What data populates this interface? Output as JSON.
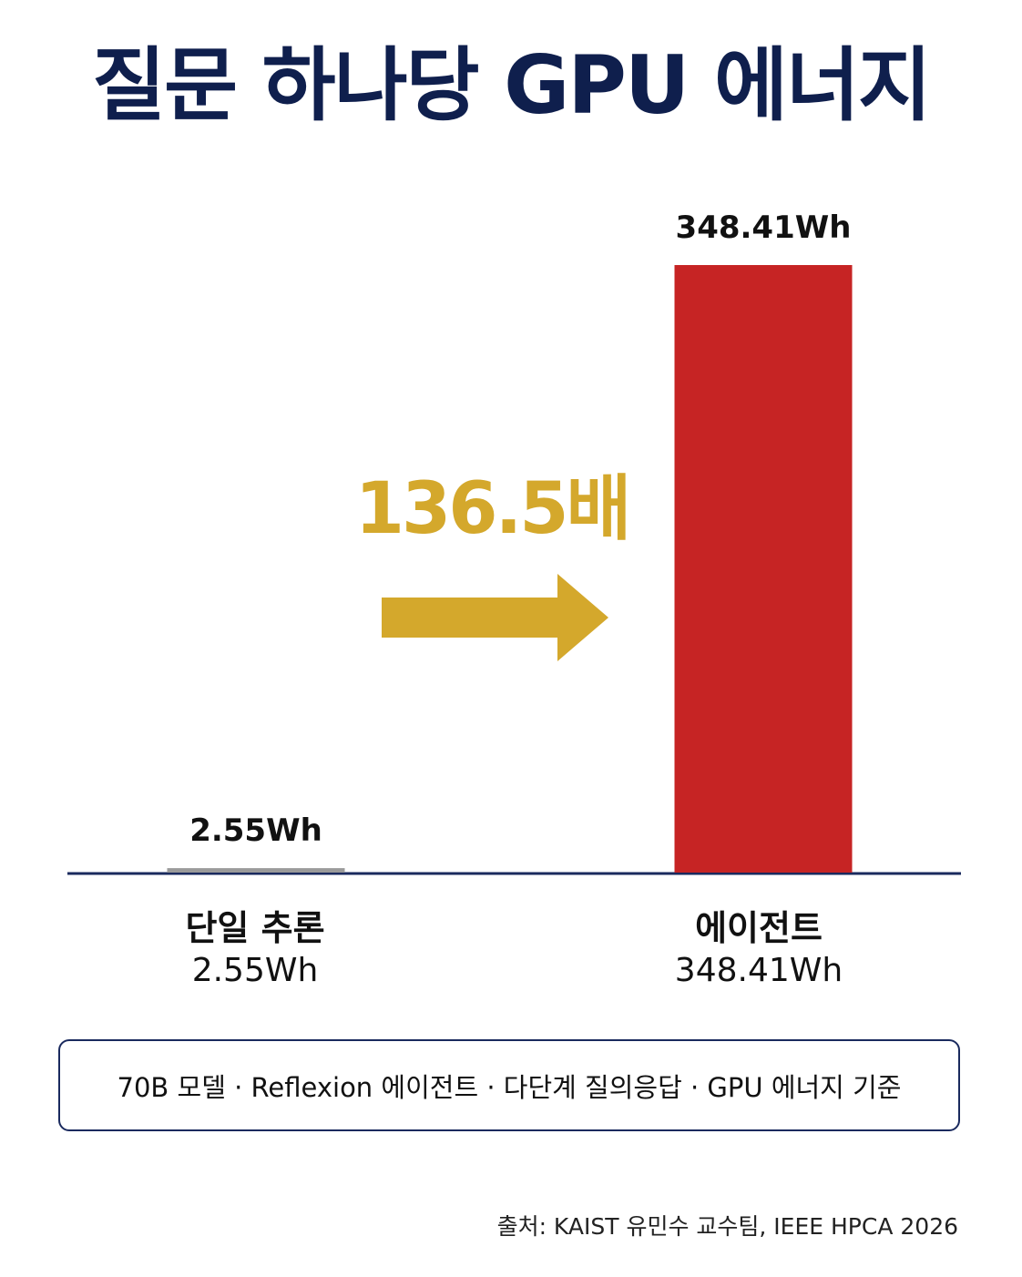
{
  "title": "질문 하나당 GPU 에너지",
  "chart_data": {
    "type": "bar",
    "categories": [
      "단일 추론",
      "에이전트"
    ],
    "values": [
      2.55,
      348.41
    ],
    "value_labels": [
      "2.55Wh",
      "348.41Wh"
    ],
    "colors": [
      "#9a9a9a",
      "#c62424"
    ],
    "ylim": [
      0,
      348.41
    ],
    "grid": false,
    "annotation": {
      "text": "136.5배",
      "color": "#d4a82c"
    }
  },
  "categories": [
    {
      "name": "단일 추론",
      "value_label": "2.55Wh"
    },
    {
      "name": "에이전트",
      "value_label": "348.41Wh"
    }
  ],
  "note": "70B 모델 · Reflexion 에이전트 · 다단계 질의응답 · GPU 에너지 기준",
  "source": "출처:  KAIST 유민수 교수팀, IEEE HPCA 2026",
  "colors": {
    "title": "#0f1f4d",
    "axis": "#1a2a5e",
    "border": "#1a2a5e"
  }
}
